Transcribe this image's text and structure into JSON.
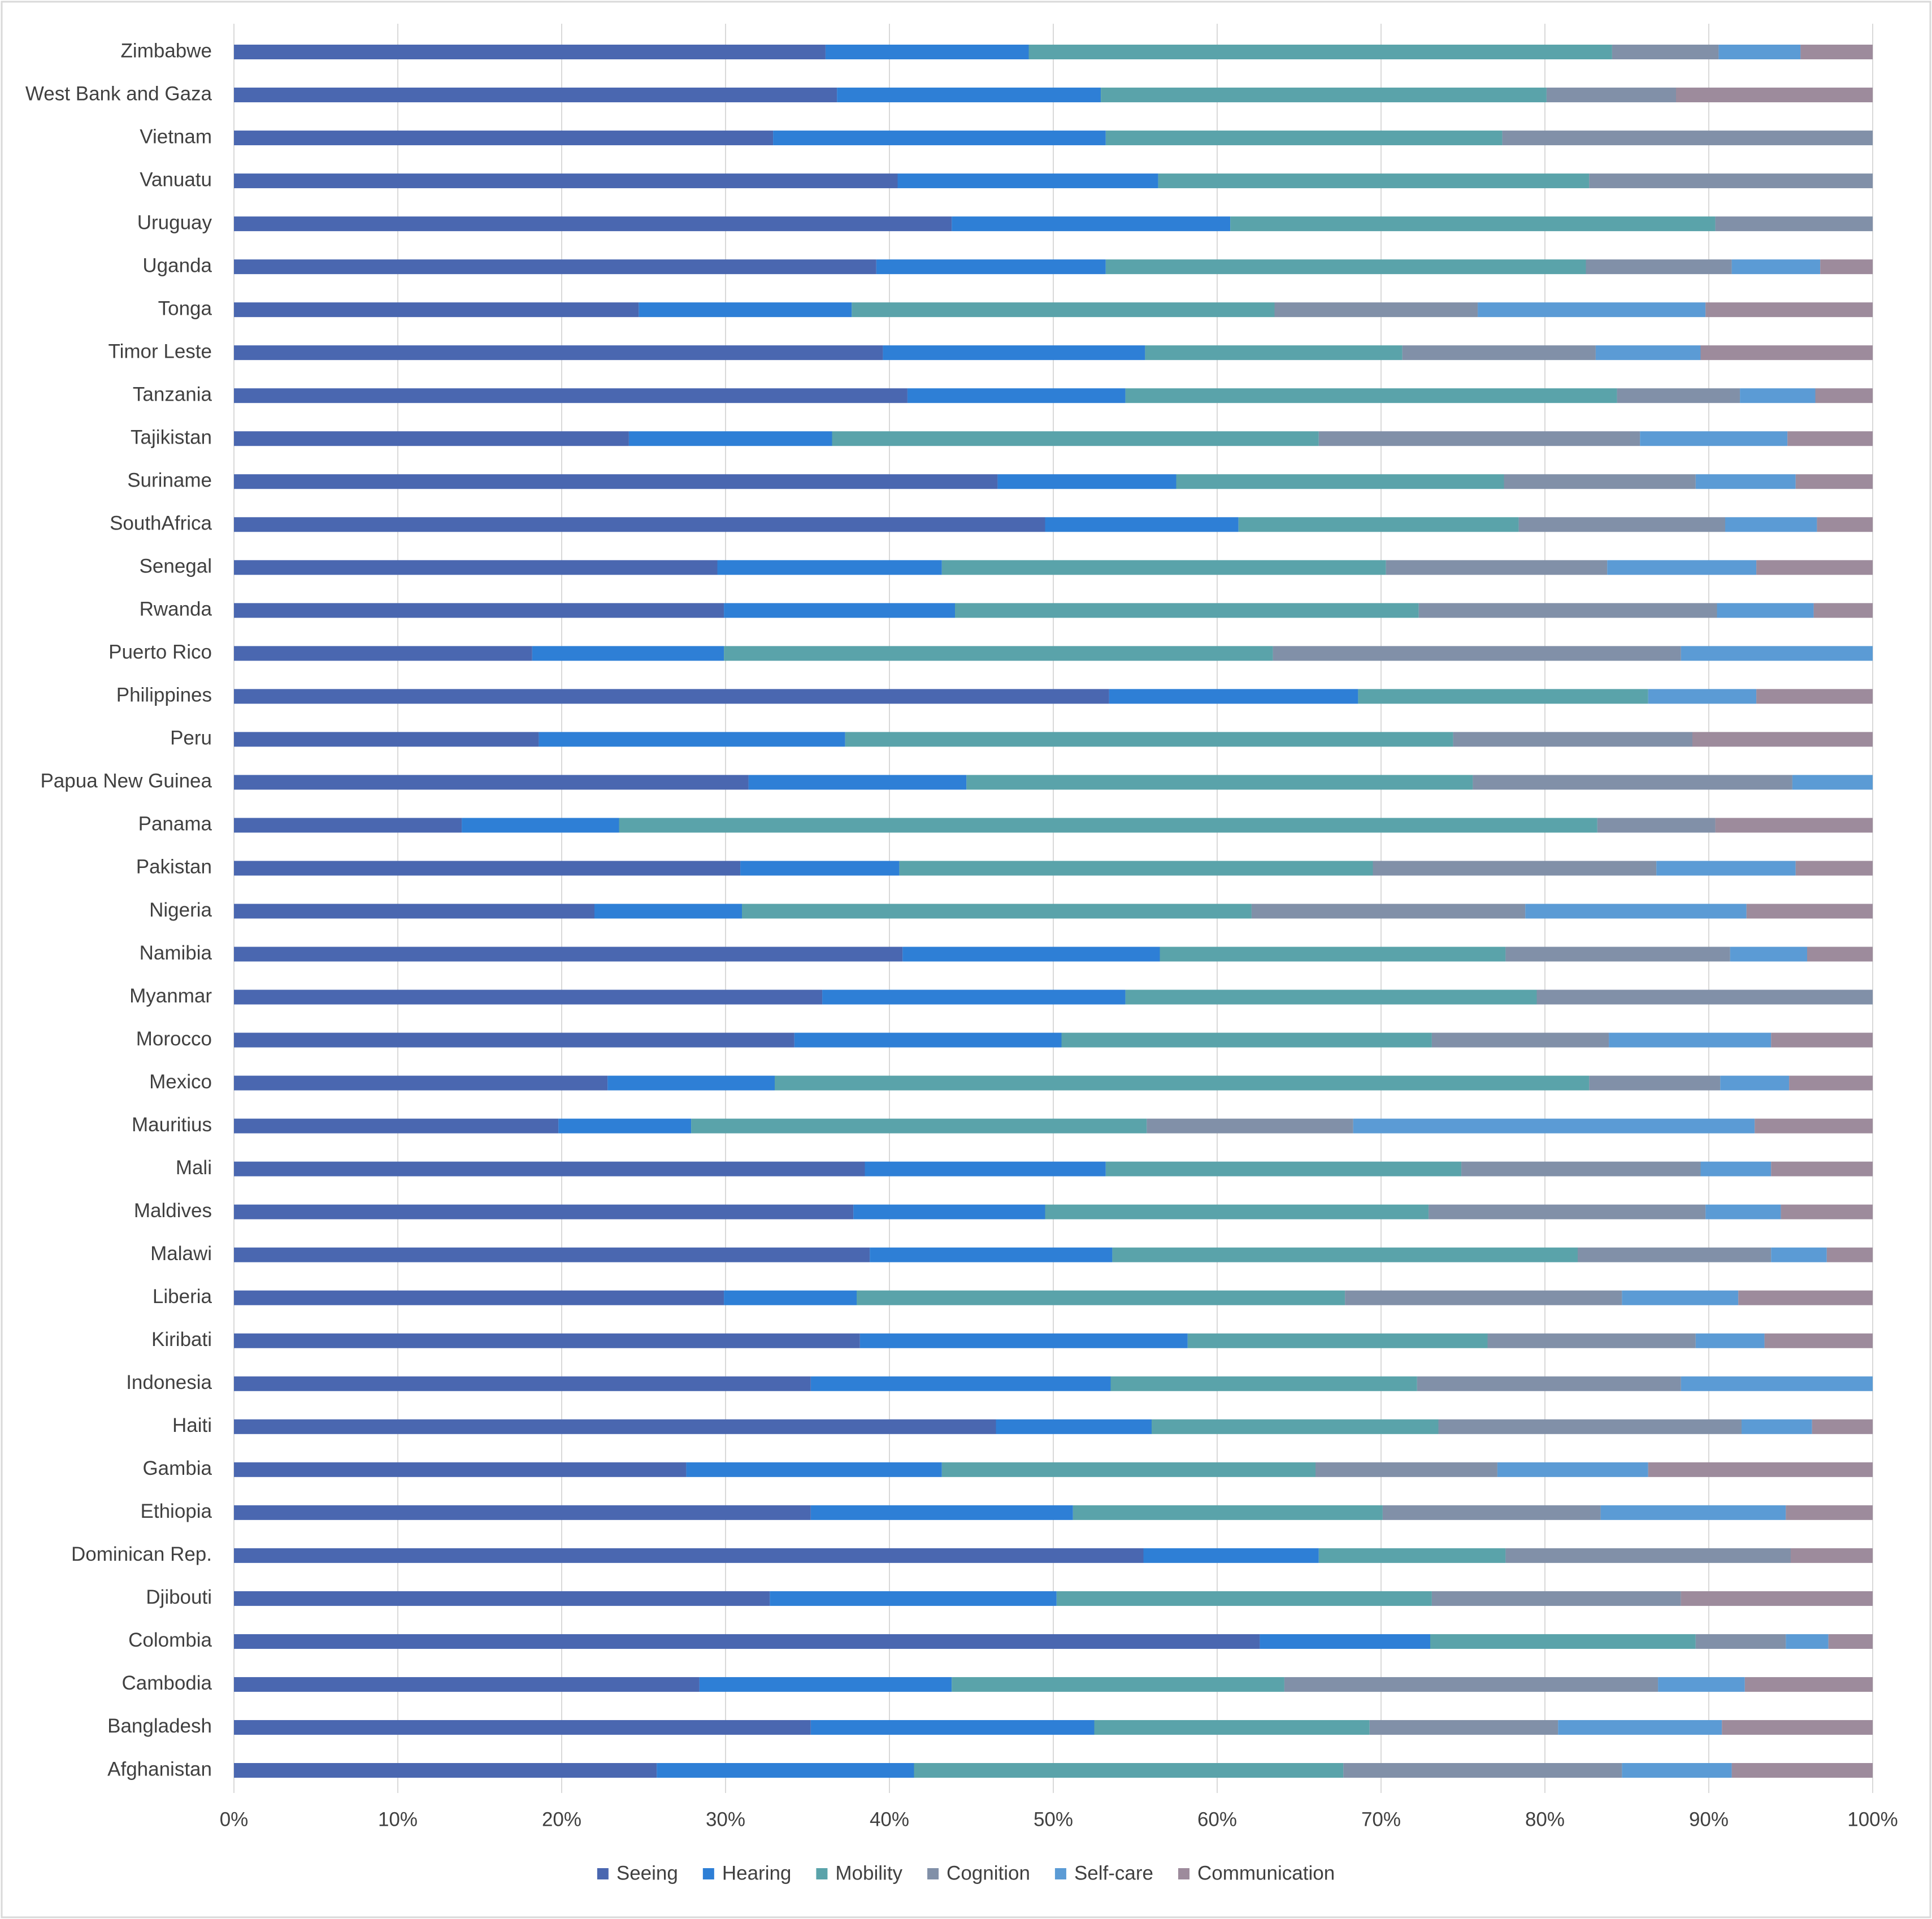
{
  "chart_data": {
    "type": "stacked_bar_horizontal",
    "categories": [
      "Zimbabwe",
      "West Bank and Gaza",
      "Vietnam",
      "Vanuatu",
      "Uruguay",
      "Uganda",
      "Tonga",
      "Timor Leste",
      "Tanzania",
      "Tajikistan",
      "Suriname",
      "SouthAfrica",
      "Senegal",
      "Rwanda",
      "Puerto Rico",
      "Philippines",
      "Peru",
      "Papua New Guinea",
      "Panama",
      "Pakistan",
      "Nigeria",
      "Namibia",
      "Myanmar",
      "Morocco",
      "Mexico",
      "Mauritius",
      "Mali",
      "Maldives",
      "Malawi",
      "Liberia",
      "Kiribati",
      "Indonesia",
      "Haiti",
      "Gambia",
      "Ethiopia",
      "Dominican Rep.",
      "Djibouti",
      "Colombia",
      "Cambodia",
      "Bangladesh",
      "Afghanistan"
    ],
    "series": [
      {
        "name": "Seeing",
        "color": "#4a67b0",
        "values": [
          36.1,
          36.8,
          32.9,
          40.5,
          43.8,
          39.2,
          24.7,
          39.6,
          41.1,
          24.1,
          46.6,
          49.5,
          29.5,
          29.9,
          18.2,
          53.4,
          18.6,
          31.4,
          13.9,
          30.9,
          22.0,
          40.8,
          35.9,
          34.2,
          22.8,
          19.8,
          38.5,
          37.8,
          38.8,
          29.9,
          38.2,
          35.2,
          46.5,
          27.6,
          35.2,
          55.5,
          32.7,
          62.6,
          28.4,
          35.2,
          25.8
        ]
      },
      {
        "name": "Hearing",
        "color": "#2e7fd6",
        "values": [
          12.4,
          16.1,
          20.3,
          15.9,
          17.0,
          14.0,
          13.0,
          16.0,
          13.3,
          12.4,
          10.9,
          11.8,
          13.7,
          14.1,
          11.7,
          15.2,
          18.7,
          13.3,
          9.6,
          9.7,
          9.0,
          15.7,
          18.5,
          16.3,
          10.2,
          8.1,
          14.7,
          11.7,
          14.8,
          8.1,
          20.0,
          18.3,
          9.5,
          15.6,
          16.0,
          10.7,
          17.5,
          10.4,
          15.4,
          17.3,
          15.7
        ]
      },
      {
        "name": "Mobility",
        "color": "#5aa3aa",
        "values": [
          35.6,
          27.2,
          24.2,
          26.3,
          29.6,
          29.3,
          25.8,
          15.7,
          30.0,
          29.7,
          20.0,
          17.1,
          27.1,
          28.3,
          33.5,
          17.7,
          37.1,
          30.9,
          59.7,
          28.9,
          31.1,
          21.1,
          25.1,
          22.6,
          49.7,
          27.8,
          21.7,
          23.4,
          28.4,
          29.8,
          18.3,
          18.7,
          17.5,
          22.8,
          18.9,
          11.4,
          22.9,
          16.2,
          20.3,
          16.8,
          26.2
        ]
      },
      {
        "name": "Cognition",
        "color": "#8190a8",
        "values": [
          6.5,
          7.9,
          22.6,
          17.3,
          9.6,
          8.9,
          12.4,
          11.8,
          7.5,
          19.6,
          11.7,
          12.6,
          13.5,
          18.2,
          24.9,
          0,
          14.6,
          19.5,
          7.2,
          17.3,
          16.7,
          13.7,
          20.5,
          10.8,
          8.0,
          12.6,
          14.6,
          16.9,
          11.8,
          16.9,
          12.7,
          16.1,
          18.5,
          11.1,
          13.3,
          17.4,
          15.2,
          5.5,
          22.8,
          11.5,
          17.0
        ]
      },
      {
        "name": "Self-care",
        "color": "#5b9bd5",
        "values": [
          5.0,
          0,
          0,
          0,
          0,
          5.4,
          13.9,
          6.4,
          4.6,
          9.0,
          6.1,
          5.6,
          9.1,
          5.9,
          11.7,
          6.6,
          0,
          4.9,
          0,
          8.5,
          13.5,
          4.7,
          0,
          9.9,
          4.2,
          24.5,
          4.3,
          4.6,
          3.4,
          7.1,
          4.2,
          11.7,
          4.3,
          9.2,
          11.3,
          0,
          0,
          2.6,
          5.3,
          10.0,
          6.7
        ]
      },
      {
        "name": "Communication",
        "color": "#9d8b9c",
        "values": [
          4.4,
          12.0,
          0,
          0,
          0,
          3.2,
          10.2,
          10.5,
          3.5,
          5.2,
          4.7,
          3.4,
          7.1,
          3.6,
          0,
          7.1,
          11.0,
          0,
          9.6,
          4.7,
          7.7,
          4.0,
          0,
          6.2,
          5.1,
          7.2,
          6.2,
          5.6,
          2.8,
          8.2,
          6.6,
          0,
          3.7,
          13.7,
          5.3,
          5.0,
          11.7,
          2.7,
          7.8,
          9.2,
          8.6
        ]
      }
    ],
    "xlim": [
      0,
      100
    ],
    "xticks": [
      {
        "value": 0,
        "label": "0%"
      },
      {
        "value": 10,
        "label": "10%"
      },
      {
        "value": 20,
        "label": "20%"
      },
      {
        "value": 30,
        "label": "30%"
      },
      {
        "value": 40,
        "label": "40%"
      },
      {
        "value": 50,
        "label": "50%"
      },
      {
        "value": 60,
        "label": "60%"
      },
      {
        "value": 70,
        "label": "70%"
      },
      {
        "value": 80,
        "label": "80%"
      },
      {
        "value": 90,
        "label": "90%"
      },
      {
        "value": 100,
        "label": "100%"
      }
    ],
    "grid": true,
    "legend": "bottom"
  }
}
